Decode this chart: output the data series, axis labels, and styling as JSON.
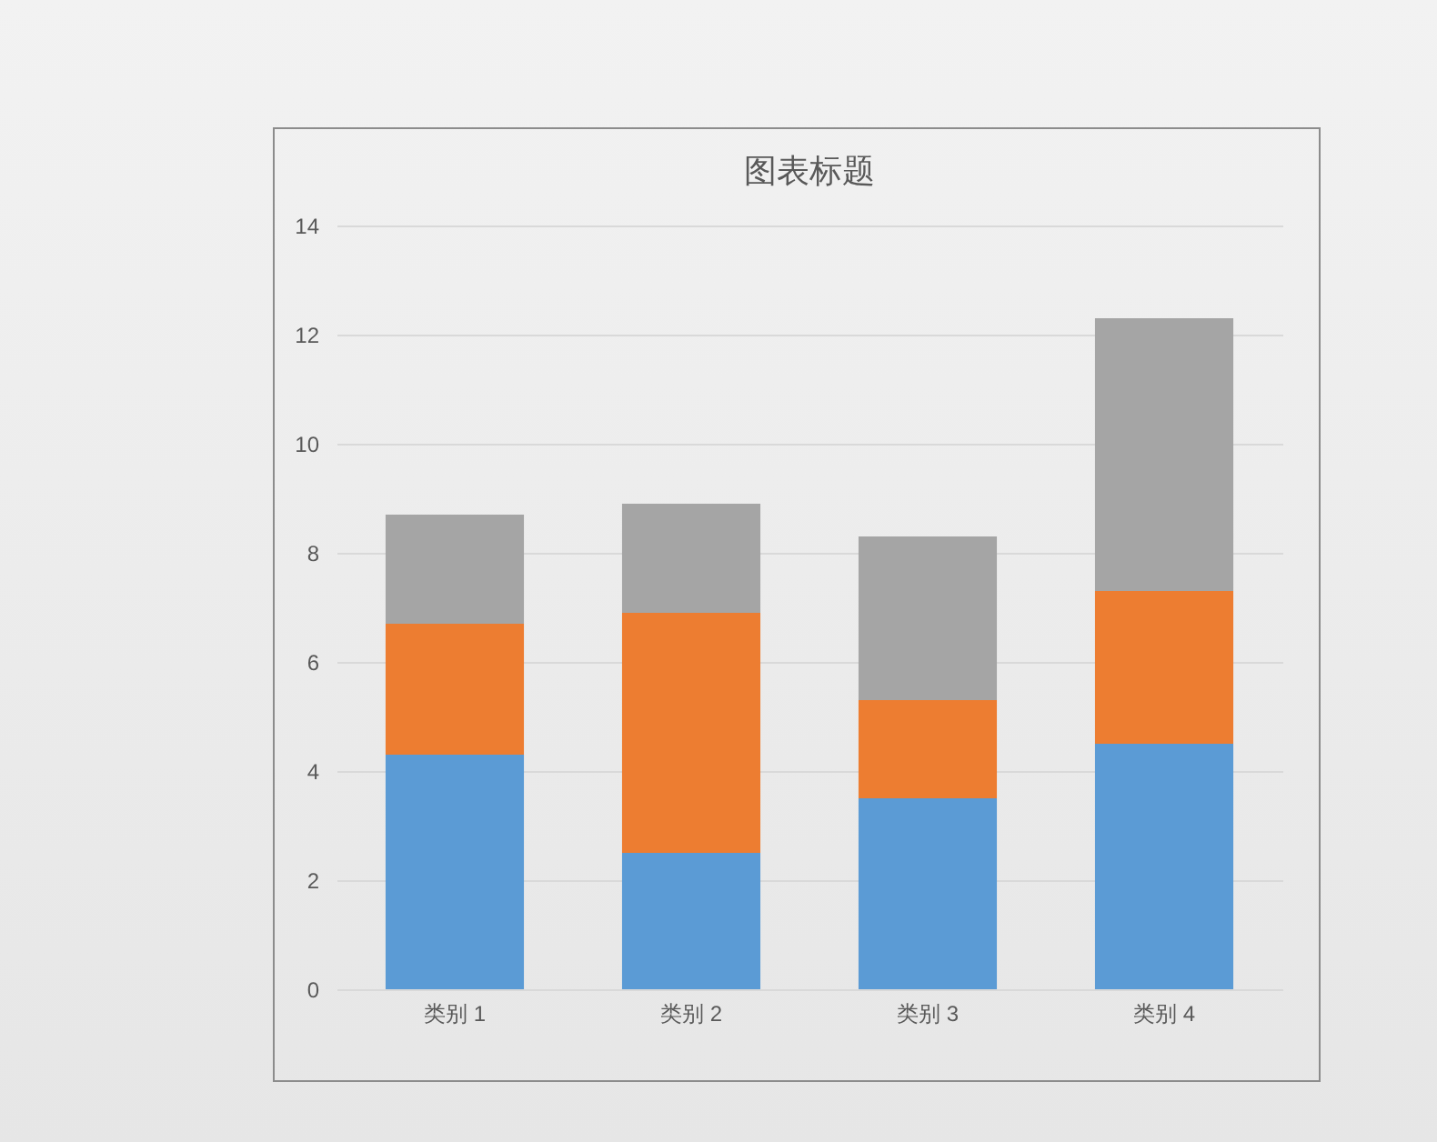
{
  "chart_data": {
    "type": "bar",
    "title": "图表标题",
    "stacked": true,
    "categories": [
      "类别 1",
      "类别 2",
      "类别 3",
      "类别 4"
    ],
    "series": [
      {
        "color": "#5b9bd5",
        "values": [
          4.3,
          2.5,
          3.5,
          4.5
        ]
      },
      {
        "color": "#ed7d31",
        "values": [
          2.4,
          4.4,
          1.8,
          2.8
        ]
      },
      {
        "color": "#a5a5a5",
        "values": [
          2,
          2,
          3,
          5
        ]
      }
    ],
    "ylim": [
      0,
      14
    ],
    "yticks": [
      0,
      2,
      4,
      6,
      8,
      10,
      12,
      14
    ],
    "grid": "y"
  }
}
